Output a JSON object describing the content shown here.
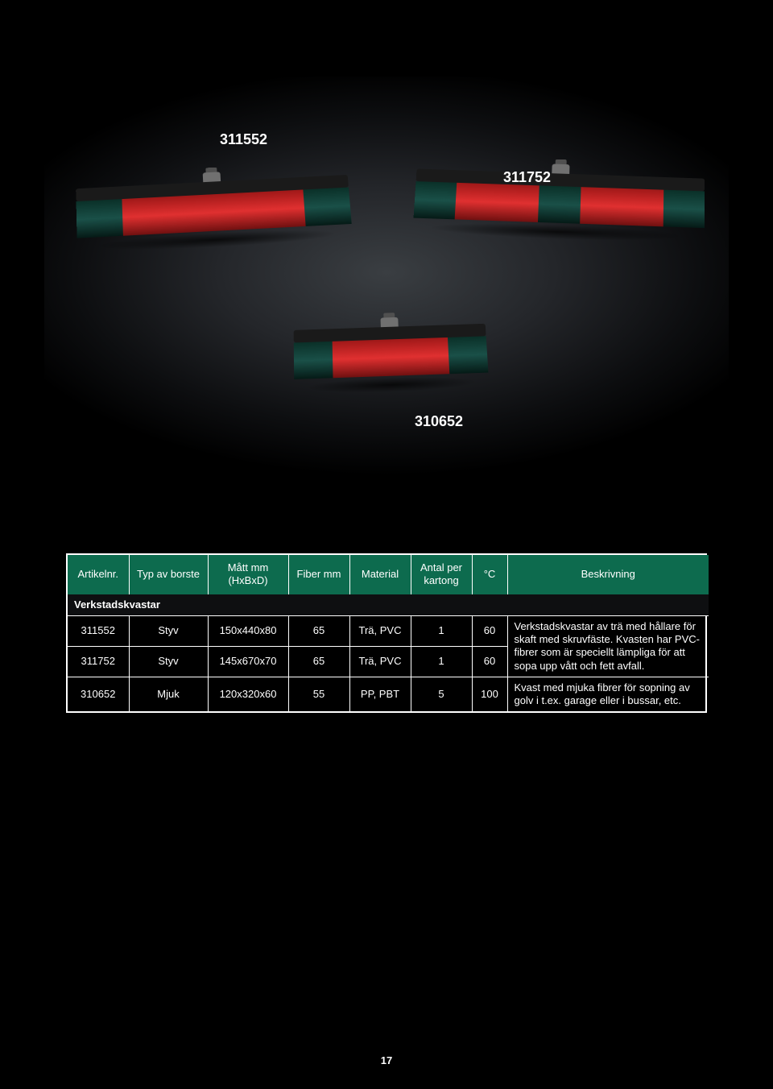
{
  "image": {
    "callouts": {
      "label1": "311552",
      "label2": "311752",
      "label3": "310652"
    }
  },
  "table": {
    "header_bg": "#0d6b4e",
    "columns": {
      "artikelnr": "Artikelnr.",
      "typ": "Typ av borste",
      "matt": "Mått mm\n(HxBxD)",
      "fiber": "Fiber mm",
      "material": "Material",
      "antal": "Antal per\nkartong",
      "tempc": "°C",
      "beskrivning": "Beskrivning"
    },
    "sections": [
      {
        "title": "Verkstadskvastar",
        "rows": [
          {
            "art": "311552",
            "typ": "Styv",
            "matt": "150x440x80",
            "fiber": "65",
            "material": "Trä, PVC",
            "antal": "1",
            "tempc": "60"
          },
          {
            "art": "311752",
            "typ": "Styv",
            "matt": "145x670x70",
            "fiber": "65",
            "material": "Trä, PVC",
            "antal": "1",
            "tempc": "60"
          }
        ],
        "desc": "Verkstadskvastar av trä med hållare för skaft med skruvfäste. Kvasten har PVC-fibrer som är speciellt lämpliga för att sopa upp vått och fett avfall.",
        "extra_row": {
          "art": "310652",
          "typ": "Mjuk",
          "matt": "120x320x60",
          "fiber": "55",
          "material": "PP, PBT",
          "antal": "5",
          "tempc": "100",
          "desc": "Kvast med mjuka fibrer för sopning av golv i t.ex. garage eller i bussar, etc."
        }
      }
    ]
  },
  "page_number": "17"
}
